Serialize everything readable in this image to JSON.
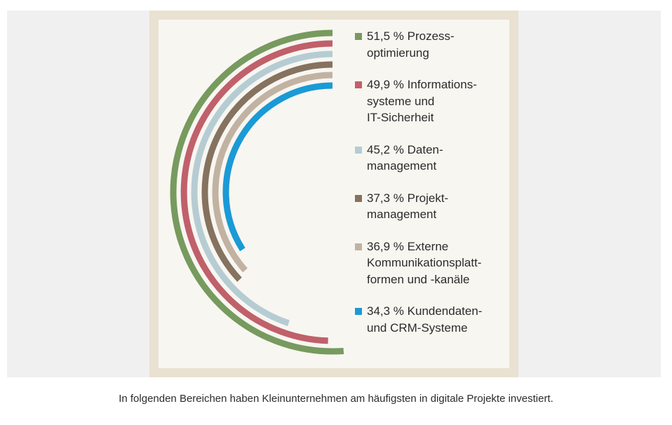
{
  "chart_data": {
    "type": "radial-bar",
    "unit": "%",
    "categories": [
      "Prozess-\noptimierung",
      "Informations-\nsysteme und\nIT-Sicherheit",
      "Daten-\nmanagement",
      "Projekt-\nmanagement",
      "Externe\nKommunikationsplatt-\nformen und -kanäle",
      "Kundendaten-\nund CRM-Systeme"
    ],
    "values": [
      51.5,
      49.9,
      45.2,
      37.3,
      36.9,
      34.3
    ],
    "value_labels": [
      "51,5 %",
      "49,9 %",
      "45,2 %",
      "37,3 %",
      "36,9 %",
      "34,3 %"
    ],
    "colors": [
      "#779a5e",
      "#c0606b",
      "#b6ccd3",
      "#85725f",
      "#c1b2a2",
      "#1a9ad6"
    ],
    "legend_position": "right"
  },
  "caption": "In folgenden Bereichen haben Kleinunternehmen am häufigsten in digitale Projekte investiert."
}
